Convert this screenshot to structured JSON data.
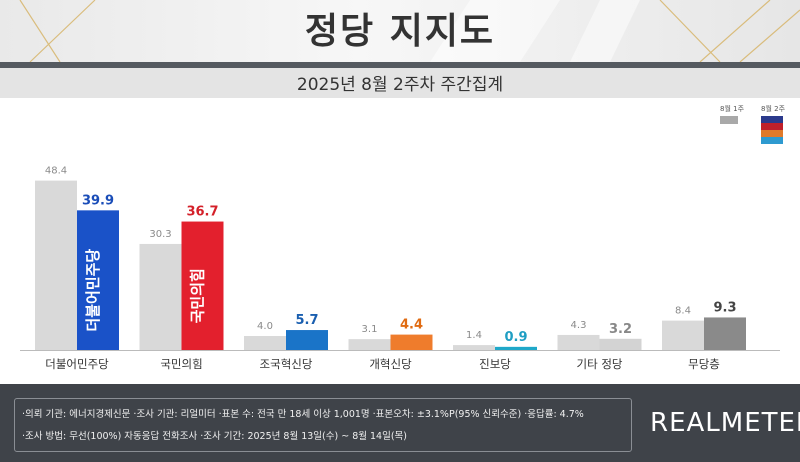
{
  "header": {
    "title": "정당 지지도",
    "subtitle": "2025년 8월 2주차 주간집계"
  },
  "legend": {
    "prev_label": "8월 1주",
    "curr_label": "8월 2주",
    "prev_color": "#a9a9a9",
    "curr_colors": [
      "#2b3a8c",
      "#c0202a",
      "#e07a2a",
      "#2e9ad0"
    ]
  },
  "chart_data": {
    "type": "bar",
    "categories": [
      "더불어민주당",
      "국민의힘",
      "조국혁신당",
      "개혁신당",
      "진보당",
      "기타 정당",
      "무당층"
    ],
    "series": [
      {
        "name": "8월 1주",
        "values": [
          48.4,
          30.3,
          4.0,
          3.1,
          1.4,
          4.3,
          8.4
        ]
      },
      {
        "name": "8월 2주",
        "values": [
          39.9,
          36.7,
          5.7,
          4.4,
          0.9,
          3.2,
          9.3
        ]
      }
    ],
    "ylim": [
      0,
      50
    ],
    "colors": {
      "prev": "#d9d9d9",
      "current": [
        "#1a52c8",
        "#e3202d",
        "#1a74c8",
        "#ef7c2c",
        "#1fa8c9",
        "#d3d3d3",
        "#8a8a8a"
      ],
      "label_current": [
        "#1a4db8",
        "#d42029",
        "#1a5fb0",
        "#e06b12",
        "#1f9ec3",
        "#888888",
        "#444444"
      ]
    },
    "bar_text": [
      "더불어민주당",
      "국민의힘"
    ],
    "grid": false,
    "legend_position": "top-right"
  },
  "footer": {
    "line1": "·의뢰 기관: 에너지경제신문 ·조사 기관: 리얼미터 ·표본 수: 전국 만 18세 이상 1,001명 ·표본오차: ±3.1%P(95% 신뢰수준) ·응답률: 4.7%",
    "line2": "·조사 방법: 무선(100%) 자동응답 전화조사 ·조사 기간: 2025년 8월 13일(수) ~ 8월 14일(목)",
    "brand": "REALMETER"
  }
}
